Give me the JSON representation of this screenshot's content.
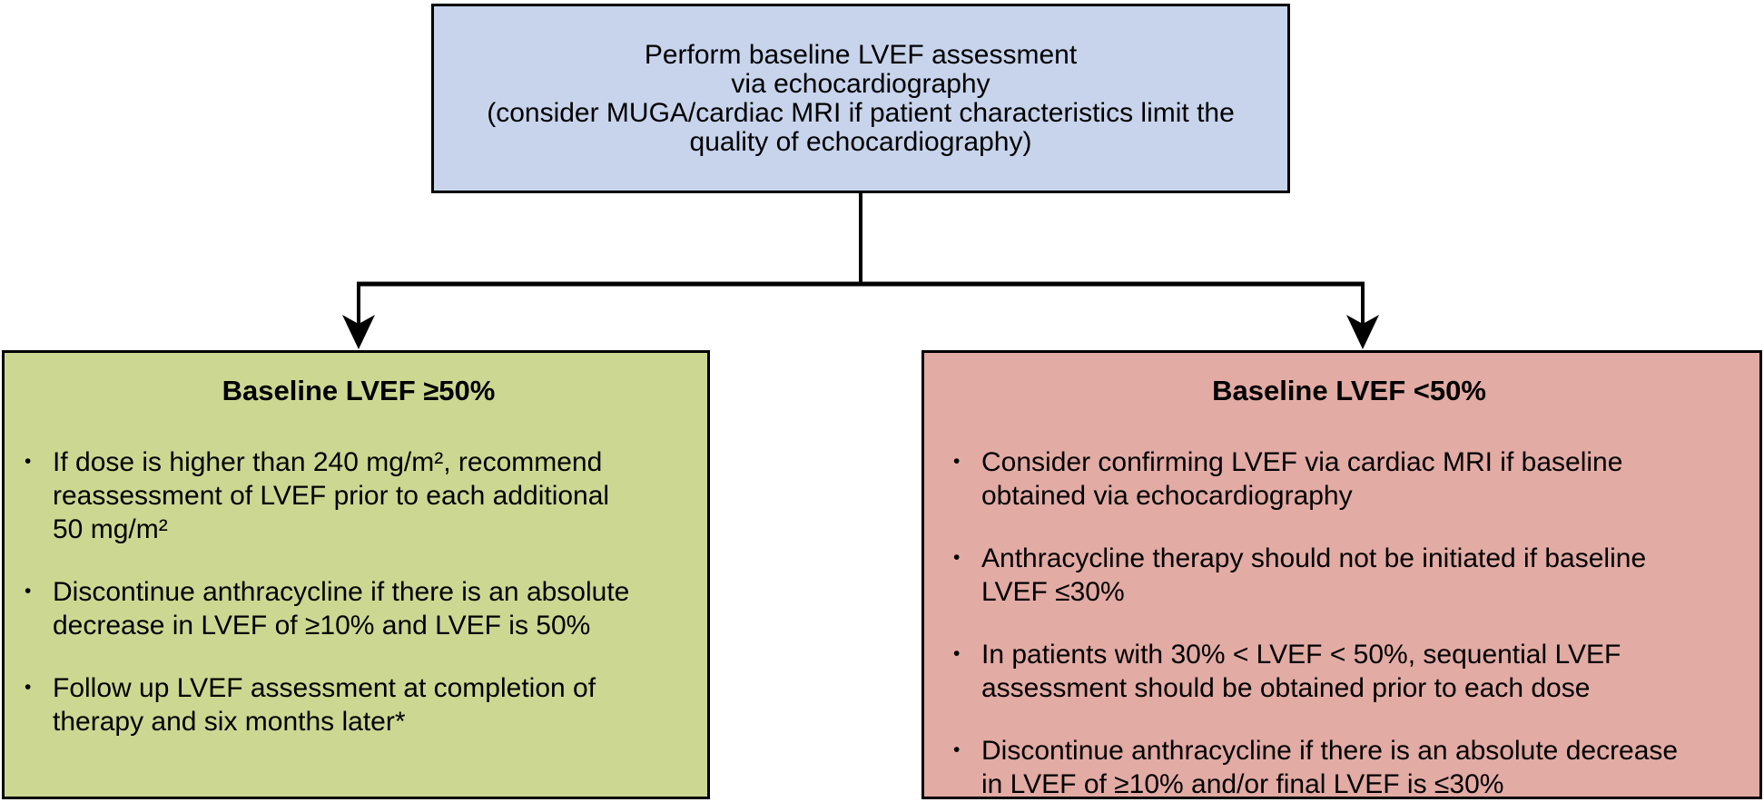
{
  "flowchart": {
    "top_box": {
      "lines": [
        "Perform baseline LVEF assessment",
        "via echocardiography",
        "(consider MUGA/cardiac MRI if patient characteristics limit the",
        "quality of echocardiography)"
      ]
    },
    "branches": {
      "left": {
        "title": "Baseline LVEF ≥50%",
        "bullets": [
          "If dose is higher than 240 mg/m², recommend\nreassessment of LVEF prior to each additional\n50 mg/m²",
          "Discontinue anthracycline if there is an absolute\ndecrease in LVEF of ≥10% and LVEF is 50%",
          "Follow up LVEF assessment at completion of\ntherapy and six months later*"
        ]
      },
      "right": {
        "title": "Baseline LVEF <50%",
        "bullets": [
          "Consider confirming LVEF via cardiac MRI if baseline\nobtained via echocardiography",
          "Anthracycline therapy should not be initiated if baseline\nLVEF ≤30%",
          "In patients with 30% < LVEF < 50%, sequential LVEF\nassessment should be obtained prior to each dose",
          "Discontinue anthracycline if there is an absolute decrease\nin LVEF of ≥10% and/or final LVEF is ≤30%"
        ]
      }
    },
    "colors": {
      "top_box_fill": "#c7d4ec",
      "left_box_fill": "#ccd892",
      "right_box_fill": "#e2aba4",
      "border": "#000000",
      "connector": "#000000",
      "text": "#000000",
      "background": "#ffffff"
    }
  }
}
